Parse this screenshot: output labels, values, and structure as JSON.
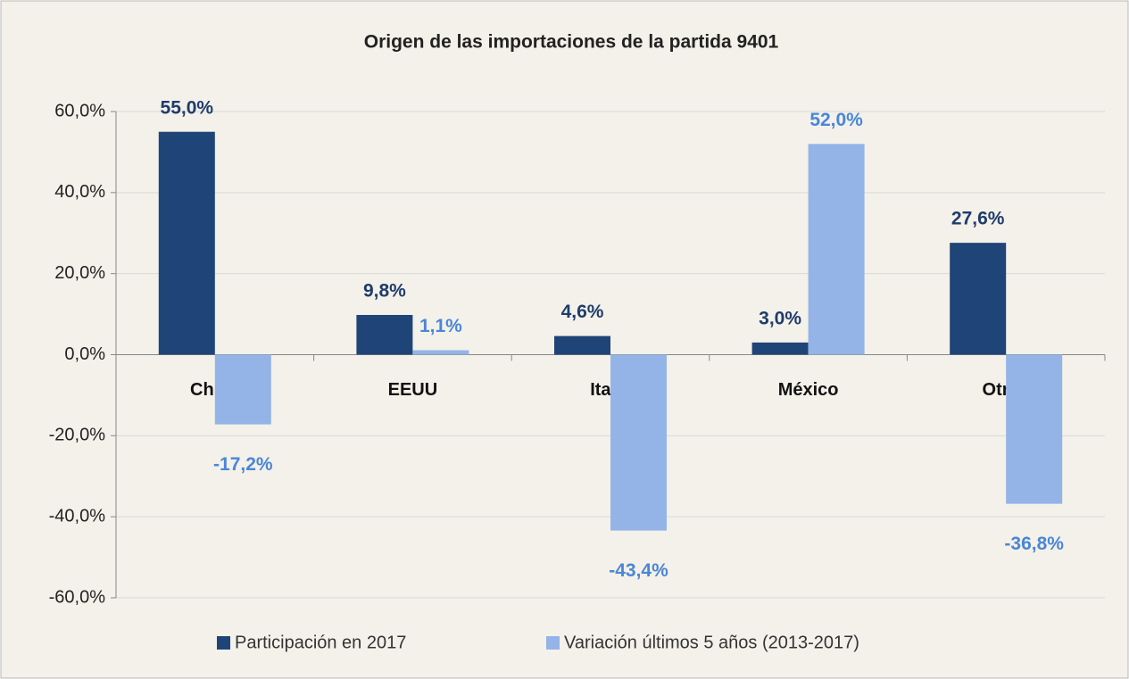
{
  "chart_data": {
    "type": "bar",
    "title": "Origen de las importaciones de la partida 9401",
    "categories": [
      "China",
      "EEUU",
      "Italia",
      "México",
      "Otros"
    ],
    "series": [
      {
        "name": "Participación en 2017",
        "color": "#1f4478",
        "label_color": "#1f3c6b",
        "values": [
          55.0,
          9.8,
          4.6,
          3.0,
          27.6
        ],
        "value_labels": [
          "55,0%",
          "9,8%",
          "4,6%",
          "3,0%",
          "27,6%"
        ]
      },
      {
        "name": "Variación últimos 5 años (2013-2017)",
        "color": "#94b4e8",
        "label_color": "#4a86d8",
        "values": [
          -17.2,
          1.1,
          -43.4,
          52.0,
          -36.8
        ],
        "value_labels": [
          "-17,2%",
          "1,1%",
          "-43,4%",
          "52,0%",
          "-36,8%"
        ]
      }
    ],
    "ylim": [
      -60,
      60
    ],
    "yticks": [
      {
        "value": -60,
        "label": "-60,0%"
      },
      {
        "value": -40,
        "label": "-40,0%"
      },
      {
        "value": -20,
        "label": "-20,0%"
      },
      {
        "value": 0,
        "label": "0,0%"
      },
      {
        "value": 20,
        "label": "20,0%"
      },
      {
        "value": 40,
        "label": "40,0%"
      },
      {
        "value": 60,
        "label": "60,0%"
      }
    ],
    "grid": true,
    "legend": "bottom"
  }
}
